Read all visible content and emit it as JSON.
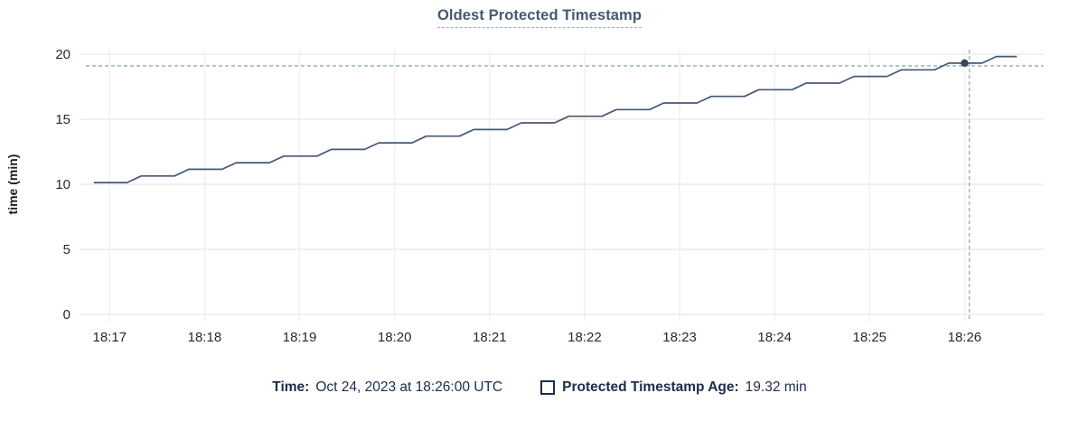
{
  "header": {
    "title": "Oldest Protected Timestamp"
  },
  "legend": {
    "time_label": "Time:",
    "time_value": "Oct 24, 2023 at 18:26:00 UTC",
    "series_label": "Protected Timestamp Age:",
    "series_value": "19.32 min",
    "swatch_style": "open-square"
  },
  "colors": {
    "title_text": "#475872",
    "series_line": "#475872",
    "highlight_dot": "#37455f",
    "crosshair": "#a3b7c3",
    "grid_horizontal": "#ebebeb",
    "grid_vertical": "#f1f1f2",
    "axis_text": "#242a35",
    "legend_text": "#1c2c4c"
  },
  "chart_data": {
    "type": "line",
    "title": "Oldest Protected Timestamp",
    "xlabel": "",
    "ylabel": "time (min)",
    "ylim": [
      0,
      20
    ],
    "yticks": [
      0,
      5,
      10,
      15,
      20
    ],
    "xticks": [
      "18:17",
      "18:18",
      "18:19",
      "18:20",
      "18:21",
      "18:22",
      "18:23",
      "18:24",
      "18:25",
      "18:26"
    ],
    "x_range": [
      "18:16:45",
      "18:26:50"
    ],
    "grid": true,
    "legend_position": "bottom-center",
    "series": [
      {
        "name": "Protected Timestamp Age",
        "unit": "min",
        "points": [
          [
            "18:16:50",
            10.13
          ],
          [
            "18:17:11",
            10.13
          ],
          [
            "18:17:20",
            10.64
          ],
          [
            "18:17:41",
            10.64
          ],
          [
            "18:17:50",
            11.15
          ],
          [
            "18:18:11",
            11.15
          ],
          [
            "18:18:20",
            11.66
          ],
          [
            "18:18:41",
            11.66
          ],
          [
            "18:18:50",
            12.17
          ],
          [
            "18:19:11",
            12.17
          ],
          [
            "18:19:20",
            12.68
          ],
          [
            "18:19:41",
            12.68
          ],
          [
            "18:19:50",
            13.19
          ],
          [
            "18:20:11",
            13.19
          ],
          [
            "18:20:20",
            13.7
          ],
          [
            "18:20:41",
            13.7
          ],
          [
            "18:20:50",
            14.21
          ],
          [
            "18:21:11",
            14.21
          ],
          [
            "18:21:20",
            14.72
          ],
          [
            "18:21:41",
            14.72
          ],
          [
            "18:21:50",
            15.23
          ],
          [
            "18:22:11",
            15.23
          ],
          [
            "18:22:20",
            15.74
          ],
          [
            "18:22:41",
            15.74
          ],
          [
            "18:22:50",
            16.25
          ],
          [
            "18:23:11",
            16.25
          ],
          [
            "18:23:20",
            16.76
          ],
          [
            "18:23:41",
            16.76
          ],
          [
            "18:23:50",
            17.27
          ],
          [
            "18:24:11",
            17.27
          ],
          [
            "18:24:20",
            17.78
          ],
          [
            "18:24:41",
            17.78
          ],
          [
            "18:24:50",
            18.29
          ],
          [
            "18:25:11",
            18.29
          ],
          [
            "18:25:20",
            18.8
          ],
          [
            "18:25:41",
            18.8
          ],
          [
            "18:25:50",
            19.31
          ],
          [
            "18:26:11",
            19.31
          ],
          [
            "18:26:20",
            19.82
          ],
          [
            "18:26:33",
            19.82
          ]
        ]
      }
    ],
    "highlight_point": {
      "time": "18:26:00",
      "value": 19.32
    },
    "crosshair": {
      "x_time": "18:26:03",
      "y_value": 19.1
    }
  }
}
